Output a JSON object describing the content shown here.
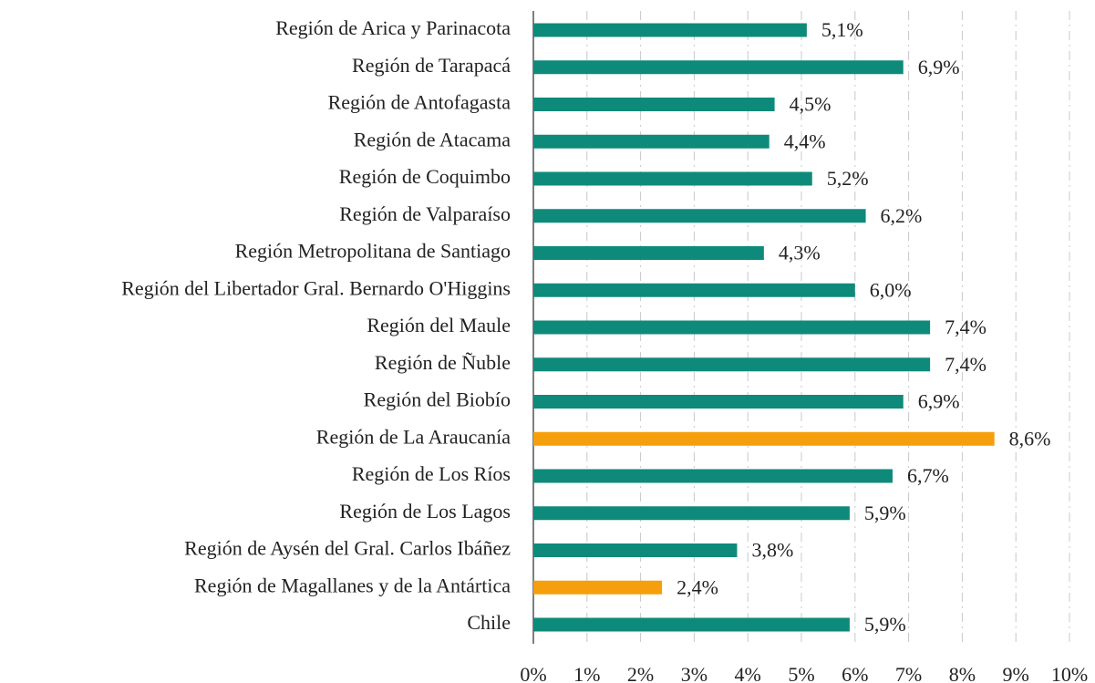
{
  "chart_data": {
    "type": "barh",
    "categories": [
      "Región de Arica y Parinacota",
      "Región de Tarapacá",
      "Región de Antofagasta",
      "Región de Atacama",
      "Región de Coquimbo",
      "Región de Valparaíso",
      "Región Metropolitana de Santiago",
      "Región del Libertador Gral. Bernardo O'Higgins",
      "Región del Maule",
      "Región de Ñuble",
      "Región del Biobío",
      "Región de La Araucanía",
      "Región de Los Ríos",
      "Región de Los Lagos",
      "Región de Aysén del Gral. Carlos Ibáñez",
      "Región de Magallanes y de la Antártica",
      "Chile"
    ],
    "values": [
      5.1,
      6.9,
      4.5,
      4.4,
      5.2,
      6.2,
      4.3,
      6.0,
      7.4,
      7.4,
      6.9,
      8.6,
      6.7,
      5.9,
      3.8,
      2.4,
      5.9
    ],
    "value_labels": [
      "5,1%",
      "6,9%",
      "4,5%",
      "4,4%",
      "5,2%",
      "6,2%",
      "4,3%",
      "6,0%",
      "7,4%",
      "7,4%",
      "6,9%",
      "8,6%",
      "6,7%",
      "5,9%",
      "3,8%",
      "2,4%",
      "5,9%"
    ],
    "colors": [
      "#0e8a7a",
      "#0e8a7a",
      "#0e8a7a",
      "#0e8a7a",
      "#0e8a7a",
      "#0e8a7a",
      "#0e8a7a",
      "#0e8a7a",
      "#0e8a7a",
      "#0e8a7a",
      "#0e8a7a",
      "#f59f0c",
      "#0e8a7a",
      "#0e8a7a",
      "#0e8a7a",
      "#f59f0c",
      "#0e8a7a"
    ],
    "xlim": [
      0,
      10
    ],
    "xticks": [
      {
        "value": 0,
        "label": "0%"
      },
      {
        "value": 1,
        "label": "1%"
      },
      {
        "value": 2,
        "label": "2%"
      },
      {
        "value": 3,
        "label": "3%"
      },
      {
        "value": 4,
        "label": "4%"
      },
      {
        "value": 5,
        "label": "5%"
      },
      {
        "value": 6,
        "label": "6%"
      },
      {
        "value": 7,
        "label": "7%"
      },
      {
        "value": 8,
        "label": "8%"
      },
      {
        "value": 9,
        "label": "9%"
      },
      {
        "value": 10,
        "label": "10%"
      }
    ],
    "grid": true
  }
}
